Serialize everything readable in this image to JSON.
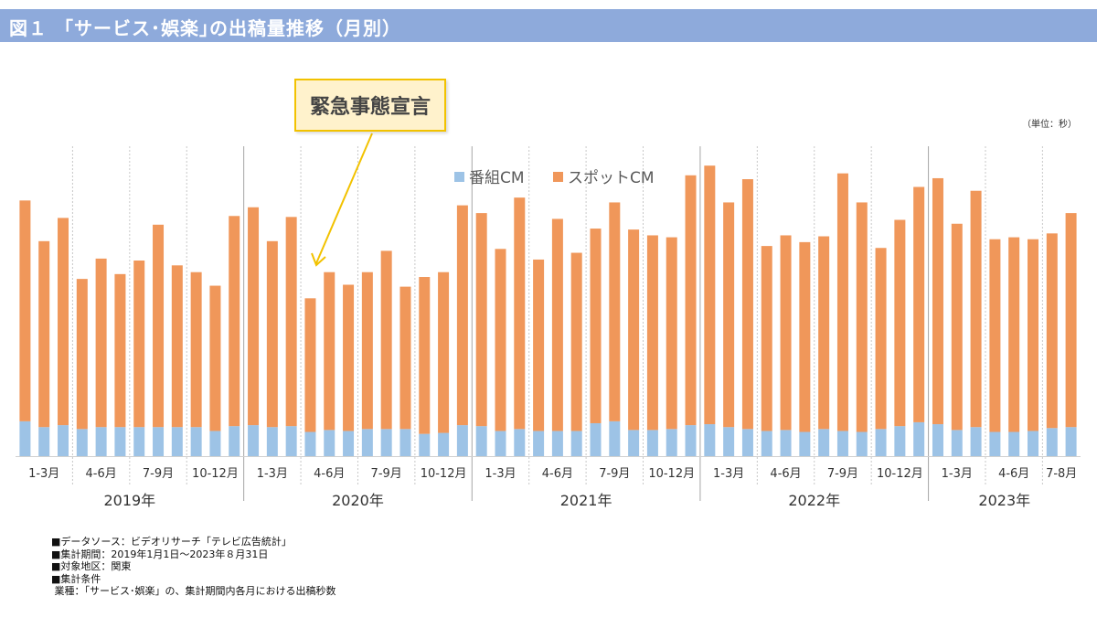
{
  "header": {
    "title": "図１ 「サービス･娯楽｣の出稿量推移（月別）"
  },
  "unit_label": "（単位：秒）",
  "callout": {
    "text": "緊急事態宣言"
  },
  "notes": [
    "■データソース：ビデオリサーチ「テレビ広告統計」",
    "■集計期間：2019年1月1日～2023年８月31日",
    "■対象地区：関東",
    "",
    "■集計条件",
    " 業種：「サービス･娯楽」の、集計期間内各月における出稿秒数"
  ],
  "chart_data": {
    "type": "bar",
    "stacked": true,
    "title": "",
    "xlabel": "",
    "ylabel": "（単位：秒）",
    "ylim": [
      0,
      320
    ],
    "value_units": "relative (no y-axis scale shown)",
    "legend": {
      "placement": "top-center",
      "entries": [
        "番組CM",
        "スポットCM"
      ]
    },
    "colors": {
      "番組CM": "#9dc3e6",
      "スポットCM": "#f0975a"
    },
    "quarter_labels": [
      "1-3月",
      "4-6月",
      "7-9月",
      "10-12月",
      "1-3月",
      "4-6月",
      "7-9月",
      "10-12月",
      "1-3月",
      "4-6月",
      "7-9月",
      "10-12月",
      "1-3月",
      "4-6月",
      "7-9月",
      "10-12月",
      "1-3月",
      "4-6月",
      "7-8月"
    ],
    "years": [
      {
        "label": "2019年",
        "months": 12
      },
      {
        "label": "2020年",
        "months": 12
      },
      {
        "label": "2021年",
        "months": 12
      },
      {
        "label": "2022年",
        "months": 12
      },
      {
        "label": "2023年",
        "months": 8
      }
    ],
    "series": [
      {
        "name": "番組CM",
        "values": [
          36,
          30,
          32,
          28,
          30,
          30,
          30,
          30,
          30,
          30,
          26,
          31,
          32,
          30,
          31,
          25,
          27,
          26,
          28,
          28,
          28,
          23,
          24,
          32,
          31,
          26,
          28,
          26,
          26,
          26,
          34,
          36,
          27,
          27,
          28,
          32,
          33,
          30,
          28,
          26,
          27,
          25,
          28,
          26,
          25,
          28,
          31,
          35,
          33,
          27,
          30,
          25,
          25,
          26,
          29,
          30
        ]
      },
      {
        "name": "スポットCM",
        "values": [
          228,
          192,
          214,
          155,
          174,
          158,
          172,
          209,
          167,
          160,
          150,
          217,
          225,
          192,
          216,
          138,
          163,
          151,
          162,
          184,
          147,
          162,
          166,
          227,
          220,
          188,
          239,
          177,
          219,
          184,
          201,
          226,
          207,
          201,
          198,
          258,
          267,
          232,
          258,
          191,
          201,
          196,
          199,
          266,
          237,
          187,
          213,
          243,
          254,
          213,
          244,
          199,
          201,
          198,
          201,
          221
        ]
      }
    ]
  }
}
